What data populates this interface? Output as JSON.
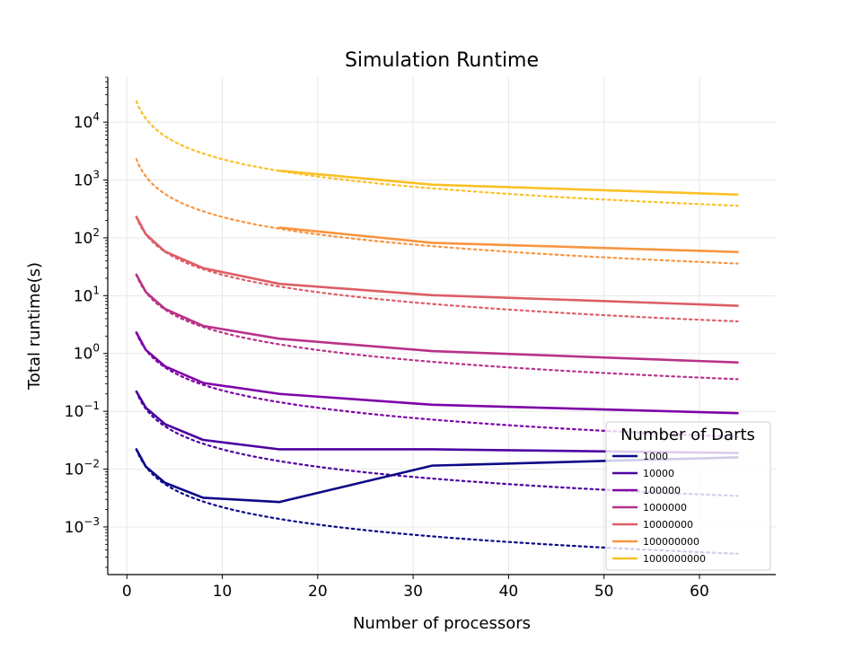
{
  "chart_data": {
    "type": "line",
    "title": "Simulation Runtime",
    "xlabel": "Number of processors",
    "ylabel": "Total runtime(s)",
    "xlim": [
      -2,
      68
    ],
    "ylim": [
      0.00015,
      60000
    ],
    "yscale": "log",
    "grid": true,
    "x_ticks": [
      0,
      10,
      20,
      30,
      40,
      50,
      60
    ],
    "x_tick_labels": [
      "0",
      "10",
      "20",
      "30",
      "40",
      "50",
      "60"
    ],
    "y_ticks": [
      0.001,
      0.01,
      0.1,
      1,
      10,
      100,
      1000,
      10000
    ],
    "y_tick_labels": [
      {
        "base": "10",
        "exp": "−3"
      },
      {
        "base": "10",
        "exp": "−2"
      },
      {
        "base": "10",
        "exp": "−1"
      },
      {
        "base": "10",
        "exp": "0"
      },
      {
        "base": "10",
        "exp": "1"
      },
      {
        "base": "10",
        "exp": "2"
      },
      {
        "base": "10",
        "exp": "3"
      },
      {
        "base": "10",
        "exp": "4"
      }
    ],
    "legend": {
      "title": "Number of Darts",
      "placement": "lower-right"
    },
    "processors": [
      1,
      2,
      4,
      8,
      16,
      32,
      64
    ],
    "ideal_style": "dotted",
    "series": [
      {
        "name": "1000",
        "color": "#0d0887",
        "values": [
          0.022,
          0.011,
          0.0058,
          0.0032,
          0.0027,
          0.0115,
          0.016
        ]
      },
      {
        "name": "10000",
        "color": "#4c02a1",
        "values": [
          0.22,
          0.115,
          0.06,
          0.032,
          0.022,
          0.022,
          0.019
        ]
      },
      {
        "name": "100000",
        "color": "#7e03a8",
        "values": [
          2.3,
          1.15,
          0.6,
          0.31,
          0.2,
          0.13,
          0.093
        ]
      },
      {
        "name": "1000000",
        "color": "#b83289",
        "values": [
          23,
          11.5,
          5.9,
          3.0,
          1.8,
          1.1,
          0.7
        ]
      },
      {
        "name": "10000000",
        "color": "#dd5e66",
        "values": [
          230,
          115,
          58,
          30,
          16,
          10.2,
          6.7
        ]
      },
      {
        "name": "100000000",
        "color": "#f89540",
        "values": [
          null,
          null,
          null,
          null,
          150,
          82,
          57
        ]
      },
      {
        "name": "1000000000",
        "color": "#fbc027",
        "values": [
          null,
          null,
          null,
          null,
          1450,
          830,
          560
        ]
      }
    ],
    "ideal_series": [
      {
        "name": "1000",
        "base": 0.022
      },
      {
        "name": "10000",
        "base": 0.22
      },
      {
        "name": "100000",
        "base": 2.3
      },
      {
        "name": "1000000",
        "base": 23
      },
      {
        "name": "10000000",
        "base": 230
      },
      {
        "name": "100000000",
        "base": 2300
      },
      {
        "name": "1000000000",
        "base": 23000
      }
    ]
  }
}
